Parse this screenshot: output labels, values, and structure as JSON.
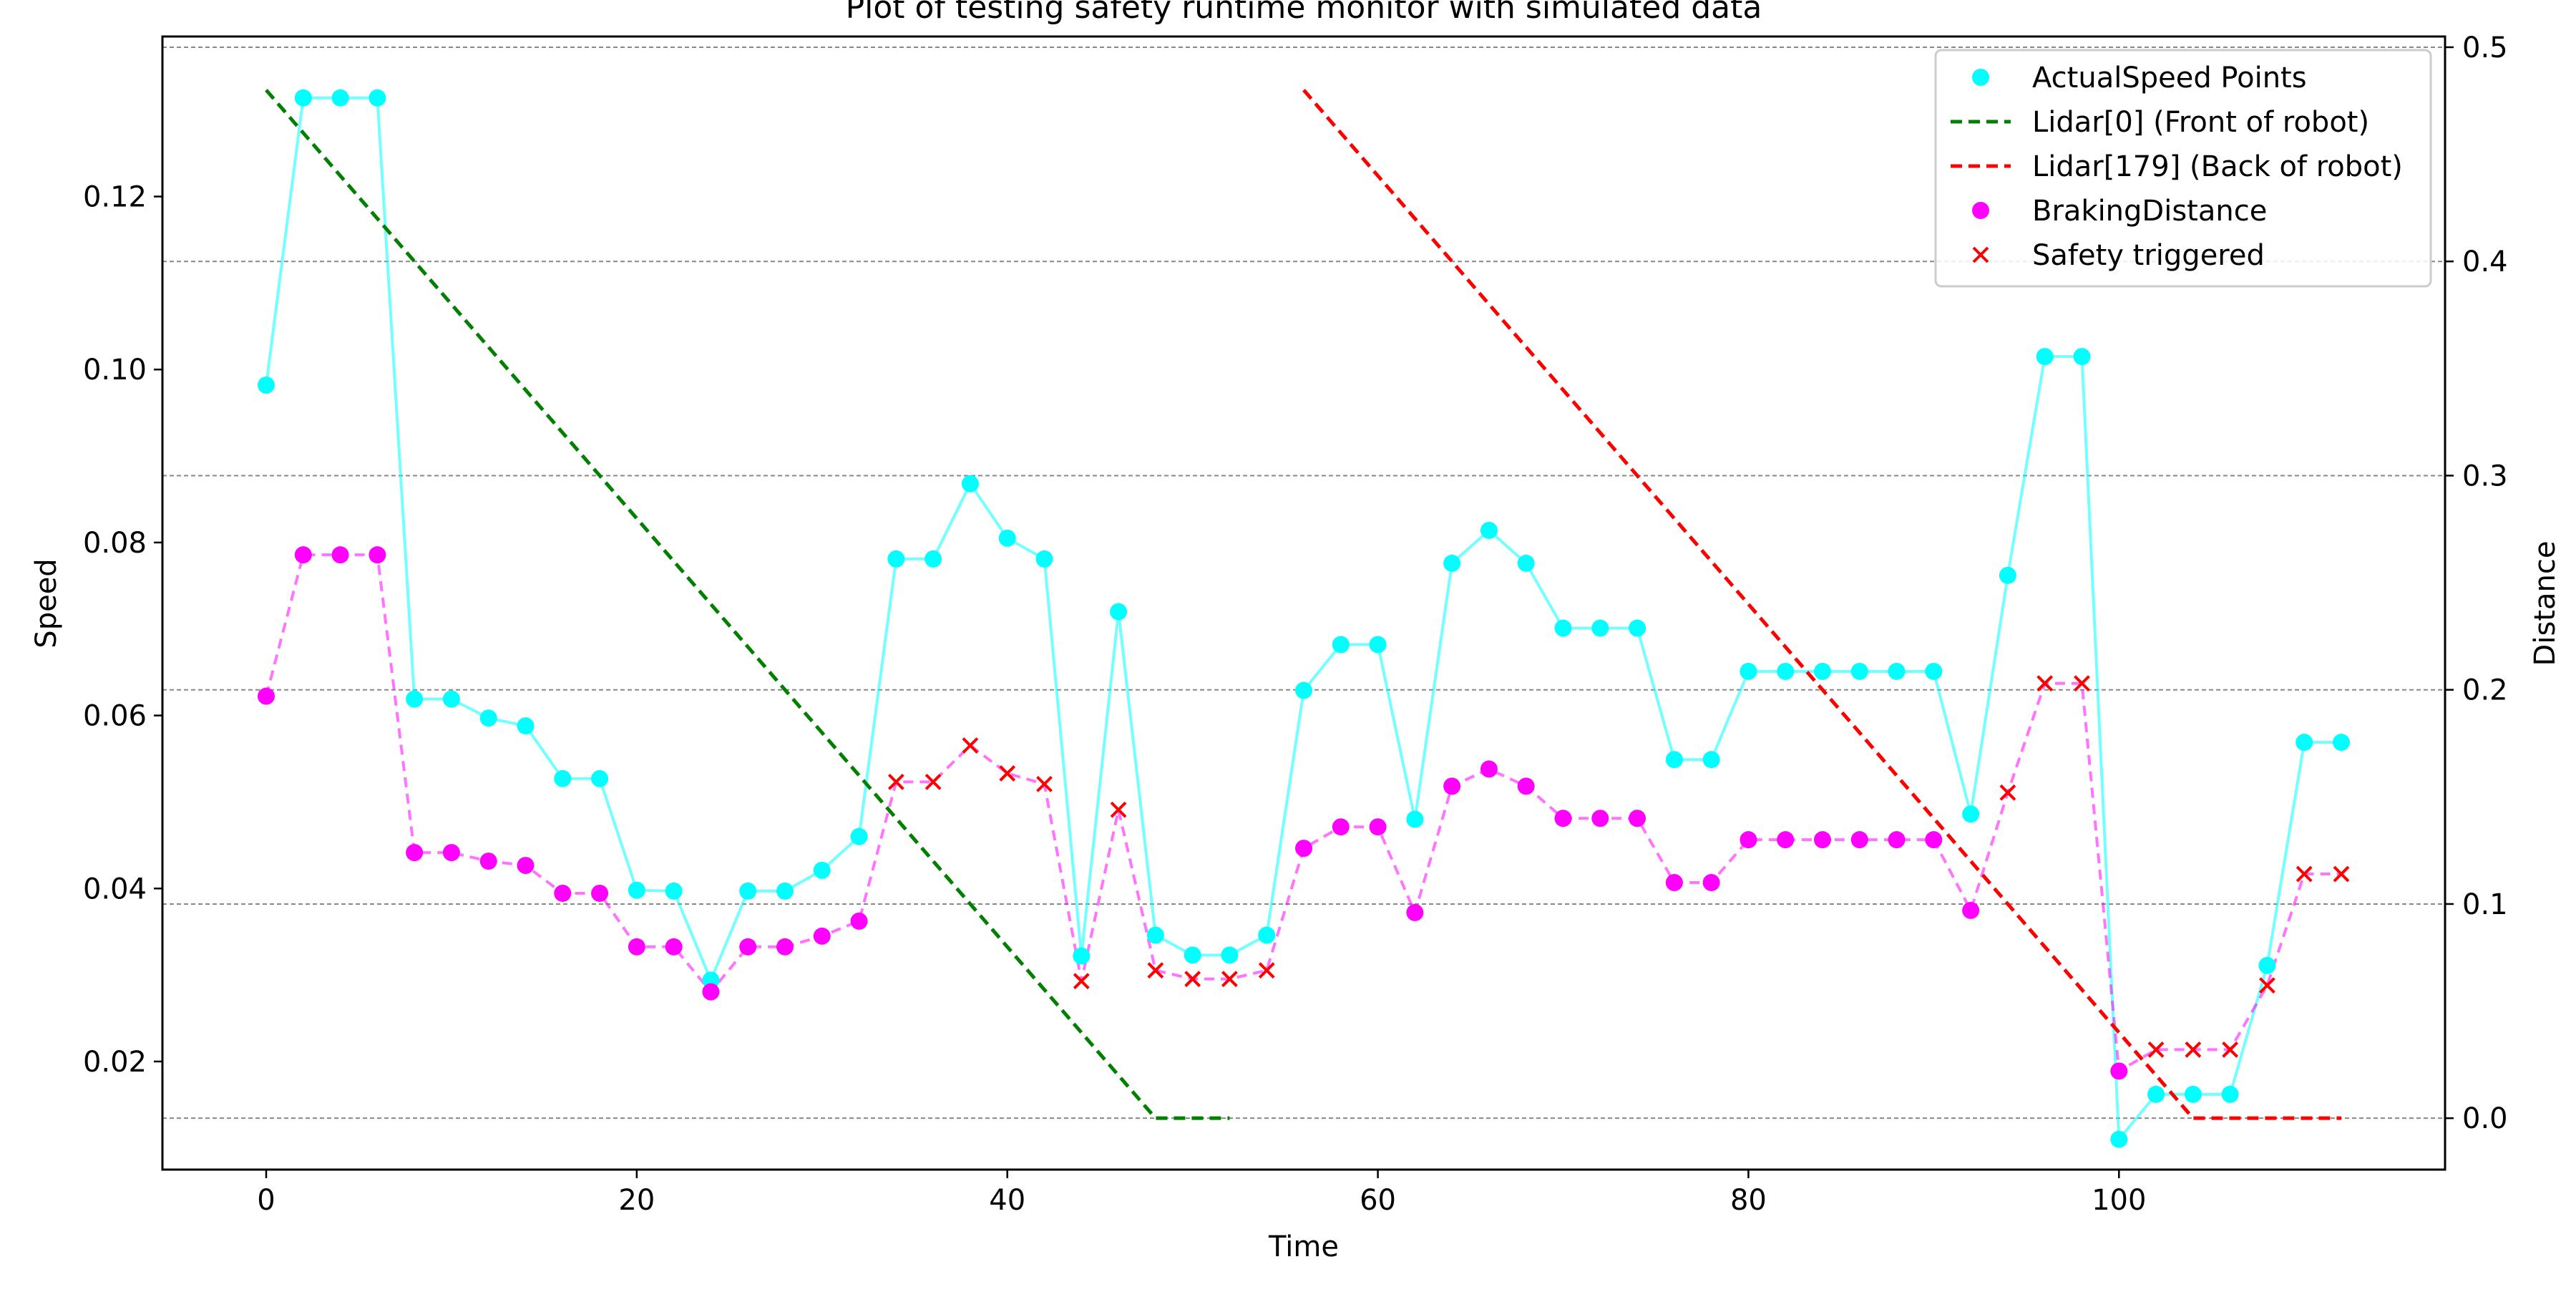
{
  "chart_data": {
    "type": "line",
    "title": "Plot of testing safety runtime monitor with simulated data",
    "xlabel": "Time",
    "ylabel_left": "Speed",
    "ylabel_right": "Distance",
    "xlim": [
      -5.6,
      117.6
    ],
    "ylim_left": [
      0.0075,
      0.1385
    ],
    "ylim_right": [
      -0.024,
      0.505
    ],
    "x_ticks": [
      0,
      20,
      40,
      60,
      80,
      100
    ],
    "y_ticks_left": [
      0.02,
      0.04,
      0.06,
      0.08,
      0.1,
      0.12
    ],
    "y_ticks_left_labels": [
      "0.02",
      "0.04",
      "0.06",
      "0.08",
      "0.10",
      "0.12"
    ],
    "y_ticks_right": [
      0.0,
      0.1,
      0.2,
      0.3,
      0.4,
      0.5
    ],
    "y_ticks_right_labels": [
      "0.0",
      "0.1",
      "0.2",
      "0.3",
      "0.4",
      "0.5"
    ],
    "grid": "horizontal dashed, right axis",
    "legend_position": "top-right",
    "legend": [
      {
        "label": "ActualSpeed Points",
        "marker": "dot",
        "color": "#00ffff"
      },
      {
        "label": "Lidar[0] (Front of robot)",
        "marker": "dashed-line",
        "color": "#008000"
      },
      {
        "label": "Lidar[179] (Back of robot)",
        "marker": "dashed-line",
        "color": "#ff0000"
      },
      {
        "label": "BrakingDistance",
        "marker": "dot",
        "color": "#ff00ff"
      },
      {
        "label": "Safety triggered",
        "marker": "x",
        "color": "#ff0000"
      }
    ],
    "x": [
      0,
      2,
      4,
      6,
      8,
      10,
      12,
      14,
      16,
      18,
      20,
      22,
      24,
      26,
      28,
      30,
      32,
      34,
      36,
      38,
      40,
      42,
      44,
      46,
      48,
      50,
      52,
      54,
      56,
      58,
      60,
      62,
      64,
      66,
      68,
      70,
      72,
      74,
      76,
      78,
      80,
      82,
      84,
      86,
      88,
      90,
      92,
      94,
      96,
      98,
      100,
      102,
      104,
      106,
      108,
      110,
      112
    ],
    "series": [
      {
        "name": "ActualSpeed Points",
        "axis": "left",
        "color": "#00ffff",
        "values": [
          0.0982,
          0.1314,
          0.1314,
          0.1314,
          0.0619,
          0.0619,
          0.0597,
          0.0588,
          0.0527,
          0.0527,
          0.0398,
          0.0397,
          0.0294,
          0.0397,
          0.0397,
          0.0421,
          0.046,
          0.0781,
          0.0781,
          0.0868,
          0.0805,
          0.0781,
          0.0322,
          0.072,
          0.0346,
          0.0323,
          0.0323,
          0.0346,
          0.0629,
          0.0682,
          0.0682,
          0.048,
          0.0776,
          0.0814,
          0.0776,
          0.0701,
          0.0701,
          0.0701,
          0.0549,
          0.0549,
          0.0651,
          0.0651,
          0.0651,
          0.0651,
          0.0651,
          0.0651,
          0.0486,
          0.0762,
          0.1015,
          0.1015,
          0.011,
          0.0162,
          0.0162,
          0.0162,
          0.0311,
          0.0569,
          0.0569
        ]
      },
      {
        "name": "BrakingDistance",
        "axis": "right",
        "color": "#ff00ff",
        "values": [
          0.197,
          0.263,
          0.263,
          0.263,
          0.124,
          0.124,
          0.12,
          0.118,
          0.105,
          0.105,
          0.08,
          0.08,
          0.059,
          0.08,
          0.08,
          0.085,
          0.092,
          0.157,
          0.157,
          0.174,
          0.161,
          0.156,
          0.064,
          0.144,
          0.069,
          0.065,
          0.065,
          0.069,
          0.126,
          0.136,
          0.136,
          0.096,
          0.155,
          0.163,
          0.155,
          0.14,
          0.14,
          0.14,
          0.11,
          0.11,
          0.13,
          0.13,
          0.13,
          0.13,
          0.13,
          0.13,
          0.097,
          0.152,
          0.203,
          0.203,
          0.022,
          0.032,
          0.032,
          0.032,
          0.062,
          0.114,
          0.114
        ]
      },
      {
        "name": "Lidar[0] (Front of robot)",
        "axis": "right",
        "color": "#008000",
        "x": [
          0,
          48,
          52
        ],
        "values": [
          0.48,
          0.0,
          0.0
        ]
      },
      {
        "name": "Lidar[179] (Back of robot)",
        "axis": "right",
        "color": "#ff0000",
        "x": [
          56,
          104,
          112
        ],
        "values": [
          0.48,
          0.0,
          0.0
        ]
      }
    ],
    "safety_triggered": {
      "name": "Safety triggered",
      "axis": "right",
      "color": "#ff0000",
      "x": [
        34,
        36,
        38,
        40,
        42,
        44,
        46,
        48,
        50,
        52,
        54,
        94,
        96,
        98,
        102,
        104,
        106,
        108,
        110,
        112
      ],
      "values": [
        0.157,
        0.157,
        0.174,
        0.161,
        0.156,
        0.064,
        0.144,
        0.069,
        0.065,
        0.065,
        0.069,
        0.152,
        0.203,
        0.203,
        0.032,
        0.032,
        0.032,
        0.062,
        0.114,
        0.114
      ]
    }
  }
}
